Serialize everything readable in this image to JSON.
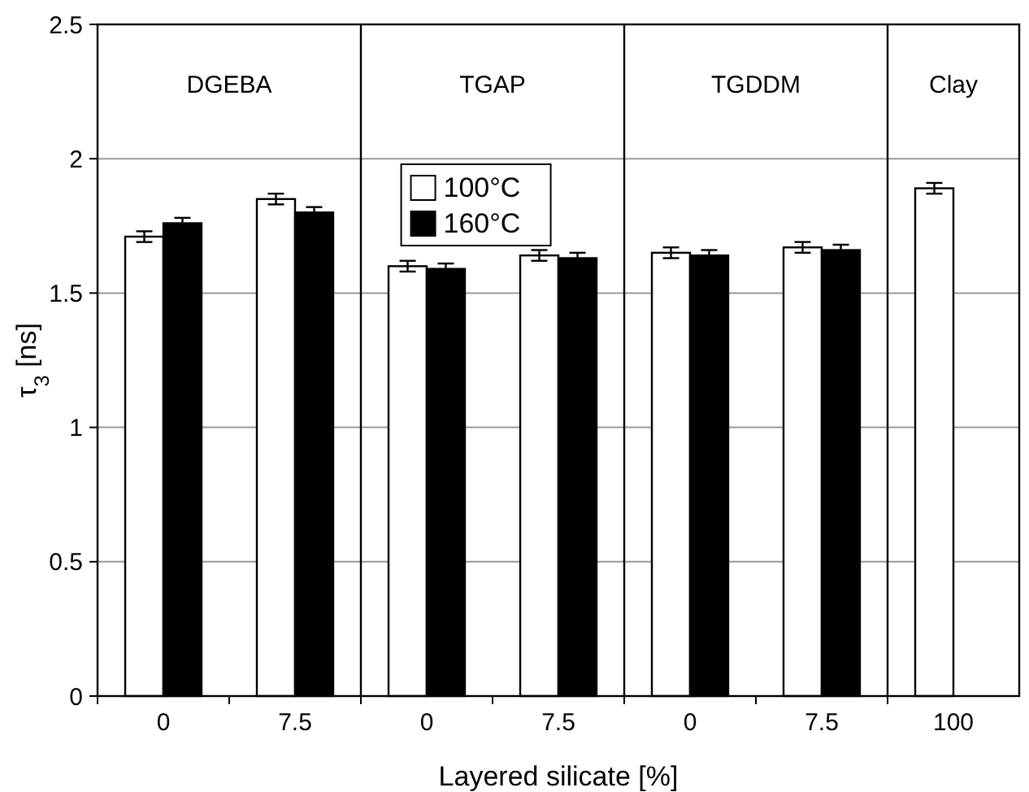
{
  "chart_data": {
    "type": "bar",
    "xlabel": "Layered silicate [%]",
    "ylabel": "τ$_{3}$ [ns]",
    "categories": [
      "0",
      "7.5",
      "0",
      "7.5",
      "0",
      "7.5",
      "100"
    ],
    "series": [
      {
        "name": "100°C",
        "color": "#ffffff",
        "values": [
          1.71,
          1.85,
          1.6,
          1.64,
          1.65,
          1.67,
          1.89
        ],
        "errors": [
          0.02,
          0.02,
          0.02,
          0.02,
          0.02,
          0.02,
          0.02
        ]
      },
      {
        "name": "160°C",
        "color": "#000000",
        "values": [
          1.76,
          1.8,
          1.59,
          1.63,
          1.64,
          1.66,
          null
        ],
        "errors": [
          0.02,
          0.02,
          0.02,
          0.02,
          0.02,
          0.02,
          null
        ]
      }
    ],
    "ylim": [
      0,
      2.5
    ],
    "yticks": [
      0,
      0.5,
      1,
      1.5,
      2,
      2.5
    ],
    "grid": "y",
    "legend": "top",
    "annotations": [
      "DGEBA",
      "TGAP",
      "TGDDM",
      "Clay"
    ]
  }
}
